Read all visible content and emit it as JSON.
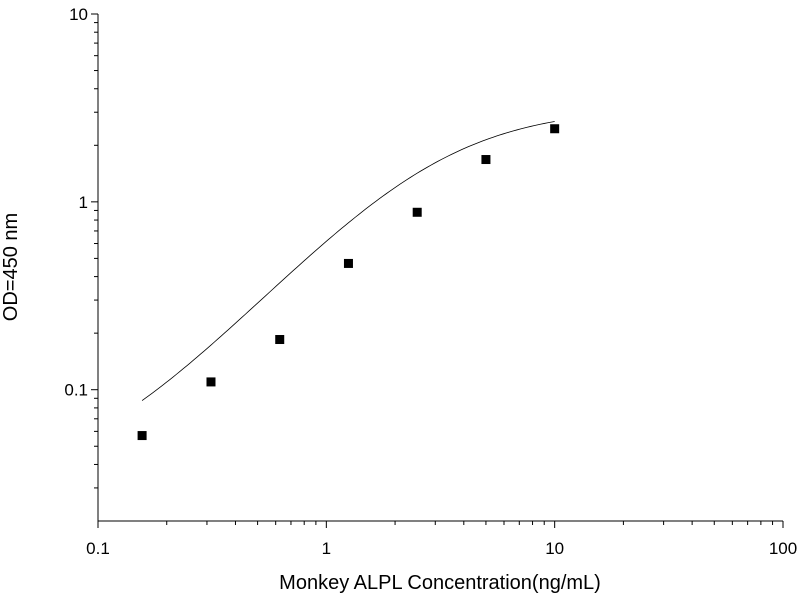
{
  "chart_data": {
    "type": "scatter",
    "title": "",
    "xlabel": "Monkey ALPL Concentration(ng/mL)",
    "ylabel": "OD=450 nm",
    "x_scale": "log",
    "y_scale": "log",
    "xlim": [
      0.1,
      100
    ],
    "ylim": [
      0.02,
      10
    ],
    "x_ticks": [
      {
        "value": 0.1,
        "label": "0.1"
      },
      {
        "value": 1,
        "label": "1"
      },
      {
        "value": 10,
        "label": "10"
      },
      {
        "value": 100,
        "label": "100"
      }
    ],
    "y_ticks": [
      {
        "value": 0.1,
        "label": "0.1"
      },
      {
        "value": 1,
        "label": "1"
      },
      {
        "value": 10,
        "label": "10"
      }
    ],
    "grid": false,
    "legend": "none",
    "series": [
      {
        "marker": "square",
        "color": "#000000",
        "x": [
          0.156,
          0.3125,
          0.625,
          1.25,
          2.5,
          5,
          10
        ],
        "y": [
          0.057,
          0.11,
          0.185,
          0.47,
          0.88,
          1.68,
          2.45
        ]
      }
    ],
    "fit_curve": {
      "type": "4PL",
      "color": "#000000",
      "x_range": [
        0.156,
        10
      ],
      "A": 0.03,
      "B": 1.35,
      "C": 3.0,
      "D": 3.2
    }
  }
}
